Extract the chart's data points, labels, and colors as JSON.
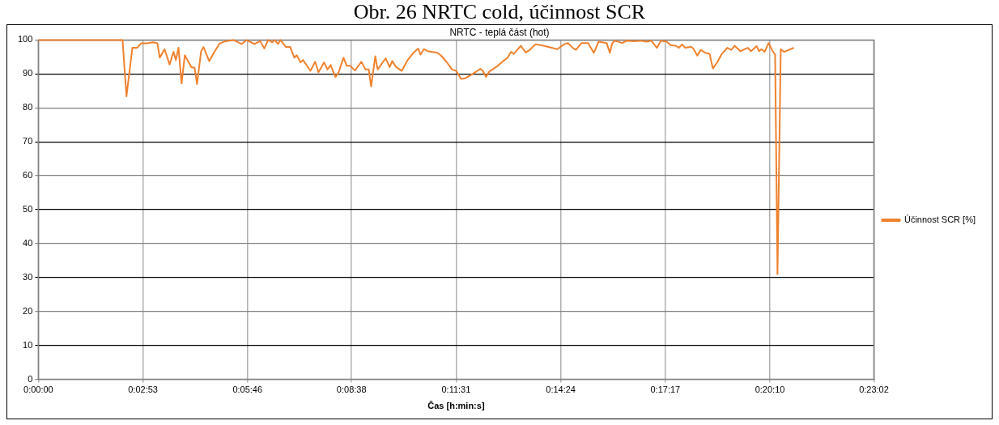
{
  "chart_data": {
    "type": "line",
    "title": "Obr. 26 NRTC cold, účinnost SCR",
    "subtitle": "NRTC - teplá část (hot)",
    "xlabel": "Čas [h:min:s]",
    "xlim": [
      0,
      0.38389
    ],
    "xticks": [
      {
        "value": 0,
        "label": "0:00:00"
      },
      {
        "value": 0.04806,
        "label": "0:02:53"
      },
      {
        "value": 0.09611,
        "label": "0:05:46"
      },
      {
        "value": 0.14389,
        "label": "0:08:38"
      },
      {
        "value": 0.19194,
        "label": "0:11:31"
      },
      {
        "value": 0.24,
        "label": "0:14:24"
      },
      {
        "value": 0.28806,
        "label": "0:17:17"
      },
      {
        "value": 0.33611,
        "label": "0:20:10"
      },
      {
        "value": 0.38389,
        "label": "0:23:02"
      }
    ],
    "ylim": [
      0,
      100
    ],
    "yticks": [
      0,
      10,
      20,
      30,
      40,
      50,
      60,
      70,
      80,
      90,
      100
    ],
    "grid": true,
    "legend": "right",
    "marker": "none",
    "line_style": "solid",
    "series": [
      {
        "name": "Účinnost SCR [%]",
        "color": "#f0822f",
        "x": [
          0,
          0.0387,
          0.0405,
          0.0432,
          0.0454,
          0.0472,
          0.0498,
          0.0528,
          0.0547,
          0.0558,
          0.058,
          0.0603,
          0.0621,
          0.0632,
          0.0644,
          0.0658,
          0.0673,
          0.0703,
          0.0718,
          0.0729,
          0.0748,
          0.0759,
          0.0785,
          0.0807,
          0.0833,
          0.0859,
          0.0897,
          0.0934,
          0.0956,
          0.0993,
          0.1019,
          0.1038,
          0.1056,
          0.1075,
          0.1086,
          0.1101,
          0.1112,
          0.1138,
          0.1157,
          0.1176,
          0.1187,
          0.1205,
          0.1216,
          0.125,
          0.1272,
          0.1287,
          0.1313,
          0.1328,
          0.1343,
          0.1365,
          0.138,
          0.1402,
          0.1417,
          0.1432,
          0.1455,
          0.1484,
          0.1503,
          0.1518,
          0.1529,
          0.1548,
          0.1559,
          0.1596,
          0.1614,
          0.1626,
          0.1644,
          0.167,
          0.1696,
          0.1719,
          0.1745,
          0.1756,
          0.1771,
          0.1789,
          0.183,
          0.1849,
          0.1875,
          0.1901,
          0.192,
          0.1942,
          0.196,
          0.1998,
          0.2031,
          0.2042,
          0.2057,
          0.2072,
          0.2109,
          0.2135,
          0.2154,
          0.2172,
          0.2184,
          0.2217,
          0.2239,
          0.2258,
          0.2284,
          0.231,
          0.2347,
          0.2385,
          0.2414,
          0.2433,
          0.2459,
          0.247,
          0.2496,
          0.2526,
          0.2552,
          0.2574,
          0.2611,
          0.2626,
          0.2637,
          0.2649,
          0.2682,
          0.2704,
          0.2738,
          0.2768,
          0.2794,
          0.2816,
          0.2842,
          0.2861,
          0.2887,
          0.2905,
          0.2928,
          0.2943,
          0.2957,
          0.2972,
          0.2998,
          0.3009,
          0.3028,
          0.3043,
          0.3065,
          0.3084,
          0.3099,
          0.3121,
          0.314,
          0.3166,
          0.3184,
          0.3199,
          0.3225,
          0.3259,
          0.3274,
          0.33,
          0.3311,
          0.3322,
          0.3337,
          0.3355,
          0.3374,
          0.3385,
          0.3396,
          0.3411,
          0.3426,
          0.3471
        ],
        "values": [
          100,
          100,
          83.4,
          97.7,
          97.7,
          99,
          99,
          99.3,
          99,
          94.8,
          97.3,
          92.8,
          96.5,
          94.1,
          97.7,
          87.2,
          95.5,
          92,
          91.8,
          87,
          96.7,
          97.9,
          93.8,
          96.3,
          99,
          99.6,
          100,
          98.8,
          100,
          98.8,
          99.7,
          97.5,
          100,
          99.3,
          100,
          98.8,
          100,
          97.9,
          98,
          94.8,
          95.5,
          93.4,
          94.1,
          90.9,
          93.6,
          90.5,
          93.4,
          91.3,
          92.6,
          89.1,
          90.5,
          94.8,
          92.4,
          92.4,
          91,
          93.6,
          91.3,
          91.3,
          86.3,
          95.2,
          91.3,
          94.6,
          92,
          93.8,
          92,
          90.9,
          94,
          95.9,
          97.5,
          95.7,
          97.3,
          96.7,
          96.3,
          95.5,
          93.6,
          91.3,
          90.9,
          88.5,
          88.7,
          90.1,
          91.5,
          90.9,
          89.1,
          90.7,
          92.3,
          93.8,
          94.6,
          96.5,
          95.9,
          98.3,
          96.3,
          97.1,
          98.7,
          98.5,
          97.9,
          97.3,
          98.7,
          99.1,
          97.5,
          97.1,
          99.1,
          99.1,
          96.2,
          99.5,
          99.1,
          96.2,
          99.1,
          99.8,
          99.1,
          99.8,
          99.6,
          99.8,
          99.5,
          99.8,
          97.7,
          99.8,
          99.5,
          98.5,
          98.3,
          97.7,
          98.7,
          97.7,
          98,
          97.5,
          95.4,
          97.1,
          96.2,
          95.9,
          91.6,
          93.6,
          95.9,
          97.7,
          97.1,
          98.3,
          96.7,
          97.7,
          96.7,
          98.2,
          96.7,
          97.3,
          96.5,
          99.1,
          96.7,
          95.7,
          31,
          97.3,
          96.5,
          97.7
        ]
      }
    ]
  }
}
